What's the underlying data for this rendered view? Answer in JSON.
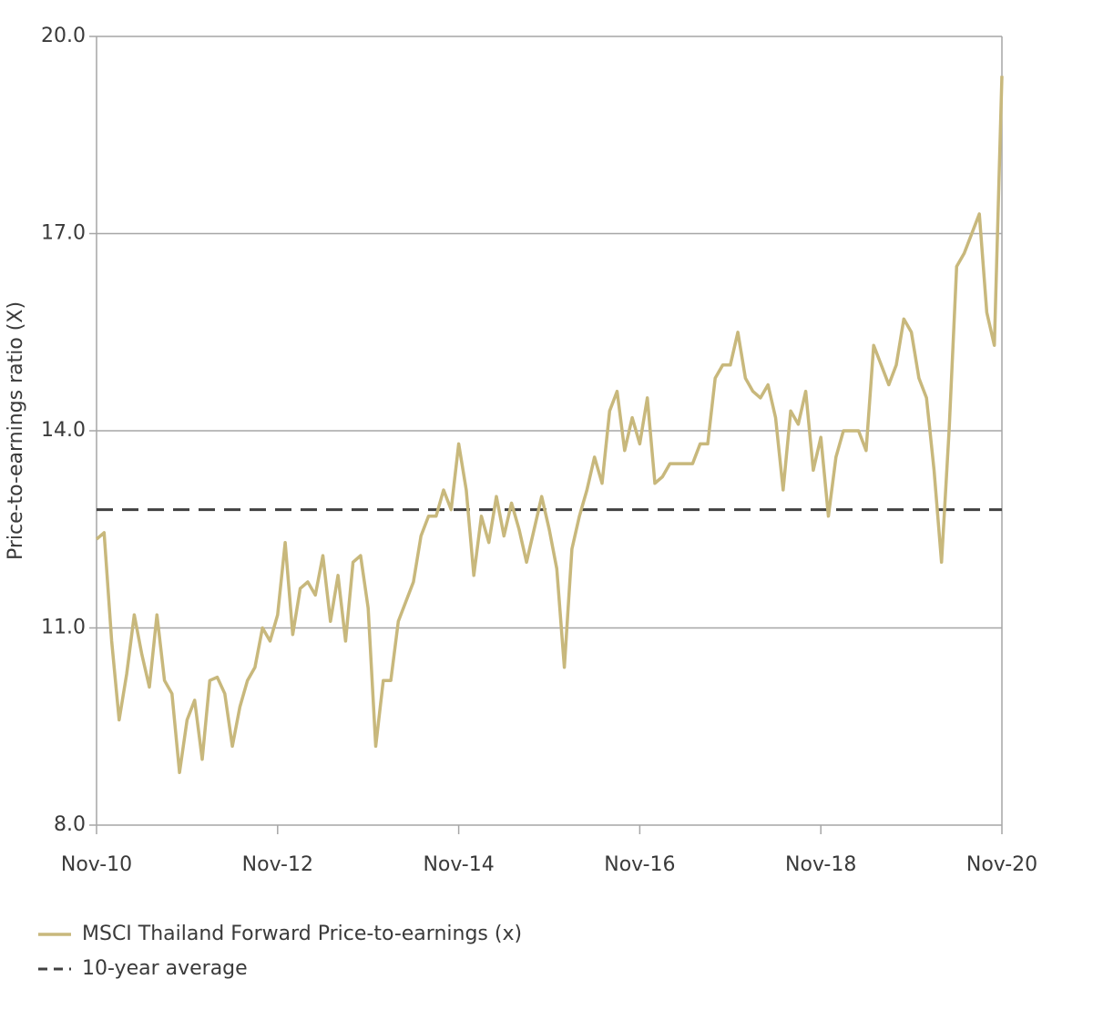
{
  "chart_data": {
    "type": "line",
    "y_label": "Price-to-earnings ratio (X)",
    "x": [
      "2010-11",
      "2010-12",
      "2011-01",
      "2011-02",
      "2011-03",
      "2011-04",
      "2011-05",
      "2011-06",
      "2011-07",
      "2011-08",
      "2011-09",
      "2011-10",
      "2011-11",
      "2011-12",
      "2012-01",
      "2012-02",
      "2012-03",
      "2012-04",
      "2012-05",
      "2012-06",
      "2012-07",
      "2012-08",
      "2012-09",
      "2012-10",
      "2012-11",
      "2012-12",
      "2013-01",
      "2013-02",
      "2013-03",
      "2013-04",
      "2013-05",
      "2013-06",
      "2013-07",
      "2013-08",
      "2013-09",
      "2013-10",
      "2013-11",
      "2013-12",
      "2014-01",
      "2014-02",
      "2014-03",
      "2014-04",
      "2014-05",
      "2014-06",
      "2014-07",
      "2014-08",
      "2014-09",
      "2014-10",
      "2014-11",
      "2014-12",
      "2015-01",
      "2015-02",
      "2015-03",
      "2015-04",
      "2015-05",
      "2015-06",
      "2015-07",
      "2015-08",
      "2015-09",
      "2015-10",
      "2015-11",
      "2015-12",
      "2016-01",
      "2016-02",
      "2016-03",
      "2016-04",
      "2016-05",
      "2016-06",
      "2016-07",
      "2016-08",
      "2016-09",
      "2016-10",
      "2016-11",
      "2016-12",
      "2017-01",
      "2017-02",
      "2017-03",
      "2017-04",
      "2017-05",
      "2017-06",
      "2017-07",
      "2017-08",
      "2017-09",
      "2017-10",
      "2017-11",
      "2017-12",
      "2018-01",
      "2018-02",
      "2018-03",
      "2018-04",
      "2018-05",
      "2018-06",
      "2018-07",
      "2018-08",
      "2018-09",
      "2018-10",
      "2018-11",
      "2018-12",
      "2019-01",
      "2019-02",
      "2019-03",
      "2019-04",
      "2019-05",
      "2019-06",
      "2019-07",
      "2019-08",
      "2019-09",
      "2019-10",
      "2019-11",
      "2019-12",
      "2020-01",
      "2020-02",
      "2020-03",
      "2020-04",
      "2020-05",
      "2020-06",
      "2020-07",
      "2020-08",
      "2020-09",
      "2020-10",
      "2020-11"
    ],
    "series": [
      {
        "name": "MSCI Thailand Forward Price-to-earnings (x)",
        "color": "#c8b87c",
        "values": [
          12.35,
          12.45,
          10.8,
          9.6,
          10.3,
          11.2,
          10.6,
          10.1,
          11.2,
          10.2,
          10.0,
          8.8,
          9.6,
          9.9,
          9.0,
          10.2,
          10.25,
          10.0,
          9.2,
          9.8,
          10.2,
          10.4,
          11.0,
          10.8,
          11.2,
          12.3,
          10.9,
          11.6,
          11.7,
          11.5,
          12.1,
          11.1,
          11.8,
          10.8,
          12.0,
          12.1,
          11.3,
          9.2,
          10.2,
          10.2,
          11.1,
          11.4,
          11.7,
          12.4,
          12.7,
          12.7,
          13.1,
          12.8,
          13.8,
          13.1,
          11.8,
          12.7,
          12.3,
          13.0,
          12.4,
          12.9,
          12.5,
          12.0,
          12.5,
          13.0,
          12.5,
          11.9,
          10.4,
          12.2,
          12.7,
          13.1,
          13.6,
          13.2,
          14.3,
          14.6,
          13.7,
          14.2,
          13.8,
          14.5,
          13.2,
          13.3,
          13.5,
          13.5,
          13.5,
          13.5,
          13.8,
          13.8,
          14.8,
          15.0,
          15.0,
          15.5,
          14.8,
          14.6,
          14.5,
          14.7,
          14.2,
          13.1,
          14.3,
          14.1,
          14.6,
          13.4,
          13.9,
          12.7,
          13.6,
          14.0,
          14.0,
          14.0,
          13.7,
          15.3,
          15.0,
          14.7,
          15.0,
          15.7,
          15.5,
          14.8,
          14.5,
          13.4,
          12.0,
          14.0,
          16.5,
          16.7,
          17.0,
          17.3,
          15.8,
          15.3,
          19.4
        ]
      }
    ],
    "reference_line": {
      "name": "10-year average",
      "value": 12.8,
      "color": "#404040"
    },
    "xlim": [
      "2010-11",
      "2020-11"
    ],
    "xticks": [
      {
        "value": "2010-11",
        "label": "Nov-10"
      },
      {
        "value": "2012-11",
        "label": "Nov-12"
      },
      {
        "value": "2014-11",
        "label": "Nov-14"
      },
      {
        "value": "2016-11",
        "label": "Nov-16"
      },
      {
        "value": "2018-11",
        "label": "Nov-18"
      },
      {
        "value": "2020-11",
        "label": "Nov-20"
      }
    ],
    "ylim": [
      8,
      20
    ],
    "yticks": [
      {
        "value": 8,
        "label": "8.0"
      },
      {
        "value": 11,
        "label": "11.0"
      },
      {
        "value": 14,
        "label": "14.0"
      },
      {
        "value": 17,
        "label": "17.0"
      },
      {
        "value": 20,
        "label": "20.0"
      }
    ],
    "grid": true
  }
}
